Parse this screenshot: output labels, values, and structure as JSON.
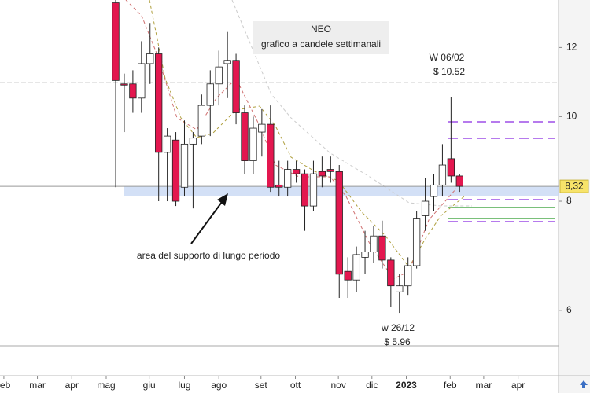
{
  "chart_data": {
    "type": "candlestick",
    "title": "NEO",
    "subtitle": "grafico a candele settimanali",
    "annotations": [
      "W 06/02",
      "$ 10.52",
      "w 26/12",
      "$ 5.96",
      "area del supporto di lungo periodo"
    ],
    "last_price": {
      "value": 8.32,
      "label": "8,32"
    },
    "up_color": "#ffffff",
    "down_color": "#e3174f",
    "log_scale": true,
    "ylim": [
      5.05,
      13.6
    ],
    "yticks": [
      12,
      10,
      8,
      6
    ],
    "xlim": [
      -13.45,
      51.5
    ],
    "xticks": [
      {
        "value": -13.0,
        "label": "feb"
      },
      {
        "value": -9.1,
        "label": "mar"
      },
      {
        "value": -5.1,
        "label": "apr"
      },
      {
        "value": -1.1,
        "label": "mag"
      },
      {
        "value": 3.9,
        "label": "giu"
      },
      {
        "value": 8.0,
        "label": "lug"
      },
      {
        "value": 12.0,
        "label": "ago"
      },
      {
        "value": 16.9,
        "label": "set"
      },
      {
        "value": 20.9,
        "label": "ott"
      },
      {
        "value": 25.9,
        "label": "nov"
      },
      {
        "value": 29.8,
        "label": "dic"
      },
      {
        "value": 33.8,
        "label": "2023"
      },
      {
        "value": 38.9,
        "label": "feb"
      },
      {
        "value": 42.8,
        "label": "mar"
      },
      {
        "value": 46.8,
        "label": "apr"
      }
    ],
    "x": [
      0,
      1,
      2,
      3,
      4,
      5,
      6,
      7,
      8,
      9,
      10,
      11,
      12,
      13,
      14,
      15,
      16,
      17,
      18,
      19,
      20,
      21,
      22,
      23,
      24,
      25,
      26,
      27,
      28,
      29,
      30,
      31,
      32,
      33,
      34,
      35,
      36,
      37,
      38,
      39,
      40
    ],
    "open": [
      13.5,
      10.9,
      10.9,
      10.5,
      11.5,
      11.8,
      9.1,
      9.4,
      8.3,
      9.3,
      9.5,
      10.3,
      10.9,
      11.5,
      11.6,
      10.1,
      8.9,
      9.6,
      9.8,
      8.35,
      8.3,
      8.7,
      8.6,
      7.9,
      8.65,
      8.7,
      8.65,
      6.65,
      6.5,
      6.9,
      7.0,
      7.3,
      6.85,
      6.3,
      6.4,
      6.75,
      7.7,
      8.1,
      8.35,
      8.95,
      8.55
    ],
    "high": [
      13.6,
      11.2,
      11.3,
      12.2,
      12.8,
      12.0,
      9.7,
      9.6,
      9.9,
      9.6,
      10.6,
      11.3,
      11.9,
      12.5,
      11.8,
      10.3,
      10.0,
      10.2,
      10.3,
      8.9,
      8.9,
      8.9,
      8.7,
      8.9,
      9.0,
      9.0,
      8.8,
      6.9,
      7.1,
      7.4,
      7.5,
      7.6,
      6.9,
      6.6,
      6.9,
      7.8,
      8.5,
      8.6,
      9.3,
      10.52,
      8.6
    ],
    "low": [
      8.3,
      9.6,
      10.1,
      10.1,
      10.9,
      8.0,
      8.0,
      7.9,
      8.1,
      7.85,
      9.3,
      9.5,
      10.3,
      10.5,
      9.8,
      8.6,
      8.6,
      9.0,
      8.2,
      8.1,
      8.1,
      8.4,
      7.4,
      7.8,
      8.3,
      8.4,
      6.2,
      6.2,
      6.3,
      6.6,
      6.8,
      6.7,
      6.05,
      5.96,
      6.25,
      6.7,
      7.4,
      7.8,
      8.1,
      8.4,
      8.2
    ],
    "close": [
      11.0,
      10.88,
      10.5,
      11.5,
      11.8,
      9.1,
      9.5,
      8.0,
      9.3,
      9.45,
      10.3,
      10.9,
      11.4,
      11.6,
      10.1,
      8.9,
      9.7,
      9.8,
      8.3,
      8.3,
      8.7,
      8.6,
      7.9,
      8.6,
      8.55,
      8.65,
      6.6,
      6.5,
      6.95,
      7.0,
      7.3,
      6.85,
      6.4,
      6.4,
      6.75,
      7.65,
      8.0,
      8.35,
      8.8,
      8.55,
      8.32
    ]
  }
}
